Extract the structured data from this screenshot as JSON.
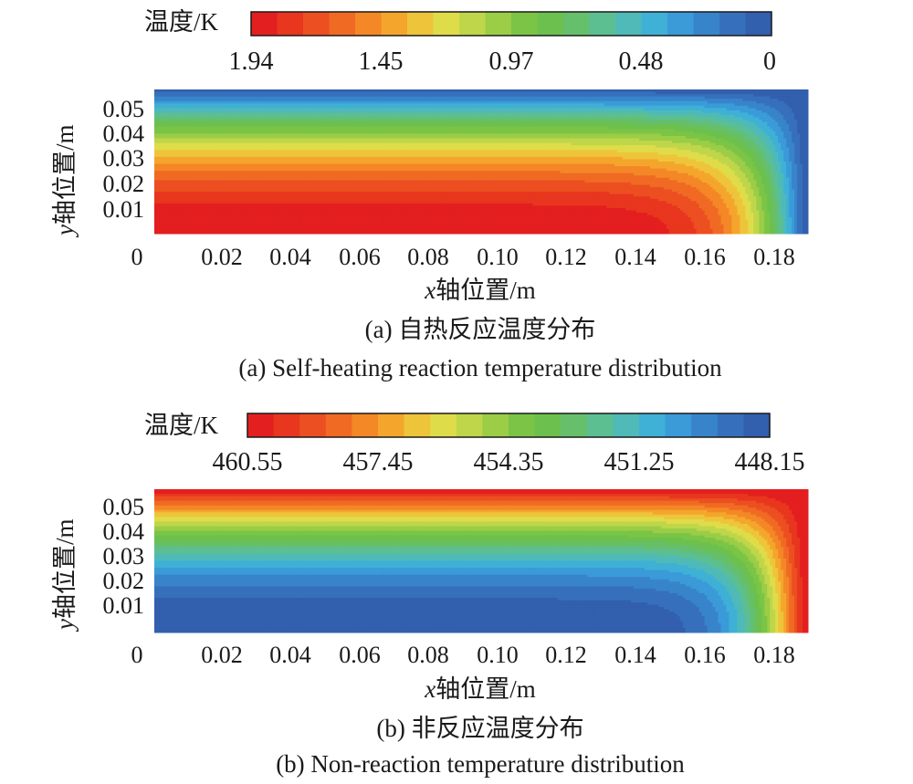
{
  "chart_data": [
    {
      "type": "heatmap",
      "colorbar": {
        "label": "温度/K",
        "ticks": [
          "1.94",
          "1.45",
          "0.97",
          "0.48",
          "0"
        ],
        "min": 0,
        "max": 1.94,
        "levels": 20,
        "hot_end": "left"
      },
      "field": "hot core: maximum at bottom-left, cooling toward the top wall and right wall",
      "xlabel_var": "x",
      "xlabel_rest": "轴位置/m",
      "ylabel_var": "y",
      "ylabel_rest": "轴位置/m",
      "xticks": [
        "0",
        "0.02",
        "0.04",
        "0.06",
        "0.08",
        "0.10",
        "0.12",
        "0.14",
        "0.16",
        "0.18"
      ],
      "yticks": [
        "0.01",
        "0.02",
        "0.03",
        "0.04",
        "0.05"
      ],
      "xlim": [
        0,
        0.19
      ],
      "ylim": [
        0,
        0.057
      ],
      "caption_cn": "(a) 自热反应温度分布",
      "caption_en": "(a) Self-heating reaction temperature distribution"
    },
    {
      "type": "heatmap",
      "colorbar": {
        "label": "温度/K",
        "ticks": [
          "460.55",
          "457.45",
          "454.35",
          "451.25",
          "448.15"
        ],
        "min": 448.15,
        "max": 460.55,
        "levels": 20,
        "hot_end": "left"
      },
      "field": "cold core: minimum at bottom-left, heated from the top wall and right wall",
      "xlabel_var": "x",
      "xlabel_rest": "轴位置/m",
      "ylabel_var": "y",
      "ylabel_rest": "轴位置/m",
      "xticks": [
        "0",
        "0.02",
        "0.04",
        "0.06",
        "0.08",
        "0.10",
        "0.12",
        "0.14",
        "0.16",
        "0.18"
      ],
      "yticks": [
        "0.01",
        "0.02",
        "0.03",
        "0.04",
        "0.05"
      ],
      "xlim": [
        0,
        0.19
      ],
      "ylim": [
        0,
        0.057
      ],
      "caption_cn": "(b) 非反应温度分布",
      "caption_en": "(b) Non-reaction temperature distribution"
    }
  ],
  "colors": {
    "palette": [
      "#e41f1f",
      "#e8361f",
      "#ec4f21",
      "#f06a24",
      "#f48726",
      "#f4a62c",
      "#eec53a",
      "#dfdc4a",
      "#bfd64a",
      "#9bcd47",
      "#7bc446",
      "#6cc04e",
      "#66bf6b",
      "#5bbf92",
      "#4fbab8",
      "#3fb0d6",
      "#3a9bd8",
      "#3884cb",
      "#3670bc",
      "#325fae"
    ]
  }
}
